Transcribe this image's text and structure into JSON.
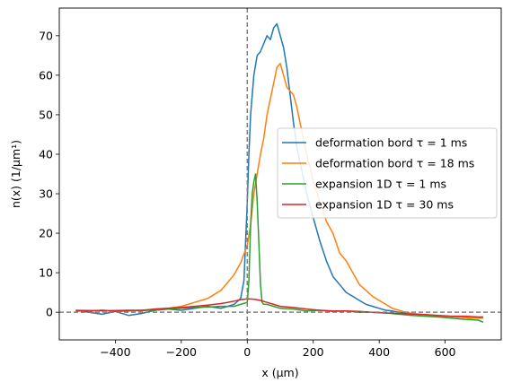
{
  "chart_data": {
    "type": "line",
    "xlabel": "x   (μm)",
    "ylabel": "n(x)   (1/μm¹)",
    "xlim": [
      -570,
      770
    ],
    "ylim": [
      -7,
      77
    ],
    "xticks": [
      -400,
      -200,
      0,
      200,
      400,
      600
    ],
    "yticks": [
      0,
      10,
      20,
      30,
      40,
      50,
      60,
      70
    ],
    "reference_lines": {
      "vertical_x": 0,
      "horizontal_y": 0,
      "style": "dashed",
      "color": "#808080"
    },
    "legend_position": "center-right",
    "series": [
      {
        "name": "deformation bord τ = 1 ms",
        "color": "#1f77b4",
        "x": [
          -520,
          -480,
          -440,
          -400,
          -360,
          -320,
          -280,
          -240,
          -200,
          -160,
          -120,
          -80,
          -60,
          -40,
          -20,
          -10,
          0,
          5,
          10,
          20,
          30,
          40,
          50,
          60,
          70,
          80,
          90,
          100,
          110,
          120,
          130,
          140,
          150,
          160,
          170,
          180,
          190,
          200,
          220,
          240,
          260,
          280,
          300,
          320,
          340,
          360,
          380,
          400,
          420,
          440,
          460,
          480,
          520,
          560,
          600,
          640,
          680,
          715
        ],
        "y": [
          0.5,
          0,
          -0.5,
          0.2,
          -0.8,
          -0.3,
          0.5,
          0.8,
          0.5,
          1.0,
          1.5,
          1.0,
          1.5,
          2.0,
          3.5,
          8,
          28,
          40,
          50,
          60,
          65,
          66,
          68,
          70,
          69,
          72,
          73,
          70,
          67,
          62,
          55,
          48,
          42,
          38,
          34,
          30,
          27,
          24,
          18,
          13,
          9,
          7,
          5,
          4,
          3,
          2,
          1.5,
          1.0,
          0.5,
          0.3,
          0,
          -0.2,
          -0.5,
          -0.8,
          -1.0,
          -1.2,
          -1.5,
          -1.2
        ]
      },
      {
        "name": "deformation bord τ = 18 ms",
        "color": "#ff7f0e",
        "x": [
          -520,
          -480,
          -440,
          -400,
          -360,
          -320,
          -280,
          -240,
          -200,
          -160,
          -140,
          -120,
          -100,
          -80,
          -60,
          -40,
          -20,
          0,
          10,
          20,
          30,
          40,
          50,
          60,
          70,
          80,
          90,
          100,
          110,
          120,
          130,
          140,
          150,
          160,
          170,
          180,
          190,
          200,
          220,
          240,
          260,
          280,
          300,
          320,
          340,
          360,
          380,
          400,
          420,
          440,
          460,
          480,
          520,
          560,
          600,
          640,
          680,
          715
        ],
        "y": [
          0.5,
          0.5,
          0.3,
          0.5,
          0.5,
          0.3,
          0.8,
          1.0,
          1.5,
          2.5,
          3.0,
          3.5,
          4.5,
          5.5,
          7.5,
          9.5,
          12.5,
          17,
          22,
          30,
          35,
          40,
          44,
          50,
          54,
          58,
          62,
          63,
          60,
          57,
          56,
          55,
          52,
          48,
          44,
          40,
          37,
          33,
          28,
          23,
          20,
          15,
          13,
          10,
          7,
          5.5,
          4,
          3,
          2,
          1,
          0.5,
          0,
          -0.5,
          -0.8,
          -1.0,
          -1.2,
          -1.5,
          -1.5
        ]
      },
      {
        "name": "expansion 1D τ = 1 ms",
        "color": "#2ca02c",
        "x": [
          -520,
          -480,
          -440,
          -400,
          -360,
          -320,
          -280,
          -240,
          -200,
          -160,
          -120,
          -80,
          -40,
          -20,
          0,
          5,
          10,
          15,
          20,
          25,
          30,
          35,
          40,
          45,
          50,
          60,
          80,
          100,
          140,
          180,
          220,
          260,
          300,
          340,
          380,
          420,
          460,
          500,
          540,
          580,
          620,
          660,
          700,
          715
        ],
        "y": [
          0.5,
          0.3,
          0.5,
          0.2,
          0.3,
          0.5,
          0.5,
          0.8,
          1.0,
          1.2,
          1.3,
          1.5,
          1.5,
          2.0,
          2.5,
          8,
          22,
          30,
          33,
          35,
          28,
          18,
          7,
          2.5,
          2.0,
          2.0,
          1.5,
          1.0,
          0.8,
          0.3,
          0.5,
          0.2,
          0.3,
          0,
          0,
          -0.2,
          -0.5,
          -0.8,
          -1.0,
          -1.2,
          -1.5,
          -1.8,
          -2.0,
          -2.5
        ]
      },
      {
        "name": "expansion 1D τ = 30 ms",
        "color": "#d62728",
        "x": [
          -520,
          -480,
          -440,
          -400,
          -360,
          -320,
          -280,
          -240,
          -200,
          -160,
          -120,
          -80,
          -60,
          -40,
          -20,
          0,
          20,
          40,
          60,
          80,
          100,
          140,
          180,
          220,
          260,
          300,
          340,
          380,
          420,
          460,
          500,
          540,
          580,
          620,
          660,
          700,
          715
        ],
        "y": [
          0.3,
          0.3,
          0.5,
          0.3,
          0.5,
          0.5,
          0.8,
          1.0,
          1.2,
          1.5,
          1.8,
          2.2,
          2.5,
          2.8,
          3.2,
          3.4,
          3.3,
          3.0,
          2.5,
          2.0,
          1.5,
          1.2,
          0.8,
          0.5,
          0.3,
          0.3,
          0.2,
          0,
          -0.2,
          -0.3,
          -0.5,
          -0.6,
          -0.8,
          -1.0,
          -1.0,
          -1.2,
          -1.2
        ]
      }
    ]
  }
}
